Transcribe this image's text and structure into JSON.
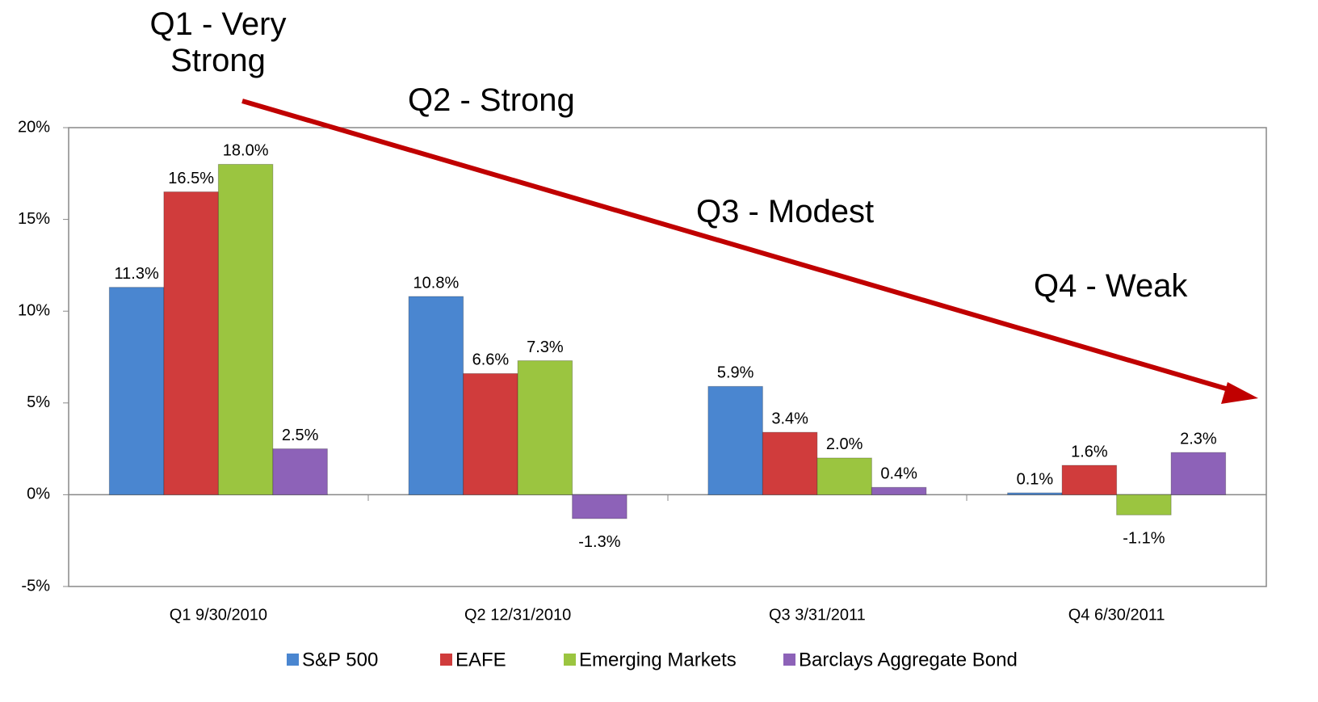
{
  "chart_data": {
    "type": "bar",
    "categories": [
      "Q1 9/30/2010",
      "Q2 12/31/2010",
      "Q3 3/31/2011",
      "Q4 6/30/2011"
    ],
    "series": [
      {
        "name": "S&P 500",
        "color": "#4a86d0",
        "values": [
          11.3,
          10.8,
          5.9,
          0.1
        ],
        "value_labels": [
          "11.3%",
          "10.8%",
          "5.9%",
          "0.1%"
        ]
      },
      {
        "name": "EAFE",
        "color": "#d03c3c",
        "values": [
          16.5,
          6.6,
          3.4,
          1.6
        ],
        "value_labels": [
          "16.5%",
          "6.6%",
          "3.4%",
          "1.6%"
        ]
      },
      {
        "name": "Emerging Markets",
        "color": "#9bc540",
        "values": [
          18.0,
          7.3,
          2.0,
          -1.1
        ],
        "value_labels": [
          "18.0%",
          "7.3%",
          "2.0%",
          "-1.1%"
        ]
      },
      {
        "name": "Barclays Aggregate Bond",
        "color": "#8d62b8",
        "values": [
          2.5,
          -1.3,
          0.4,
          2.3
        ],
        "value_labels": [
          "2.5%",
          "-1.3%",
          "0.4%",
          "2.3%"
        ]
      }
    ],
    "ylim": [
      -5,
      20
    ],
    "yticks": [
      {
        "value": -5,
        "label": "-5%"
      },
      {
        "value": 0,
        "label": "0%"
      },
      {
        "value": 5,
        "label": "5%"
      },
      {
        "value": 10,
        "label": "10%"
      },
      {
        "value": 15,
        "label": "15%"
      },
      {
        "value": 20,
        "label": "20%"
      }
    ],
    "annotations": [
      "Q1 - Very Strong",
      "Q2 - Strong",
      "Q3 - Modest",
      "Q4 - Weak"
    ]
  }
}
